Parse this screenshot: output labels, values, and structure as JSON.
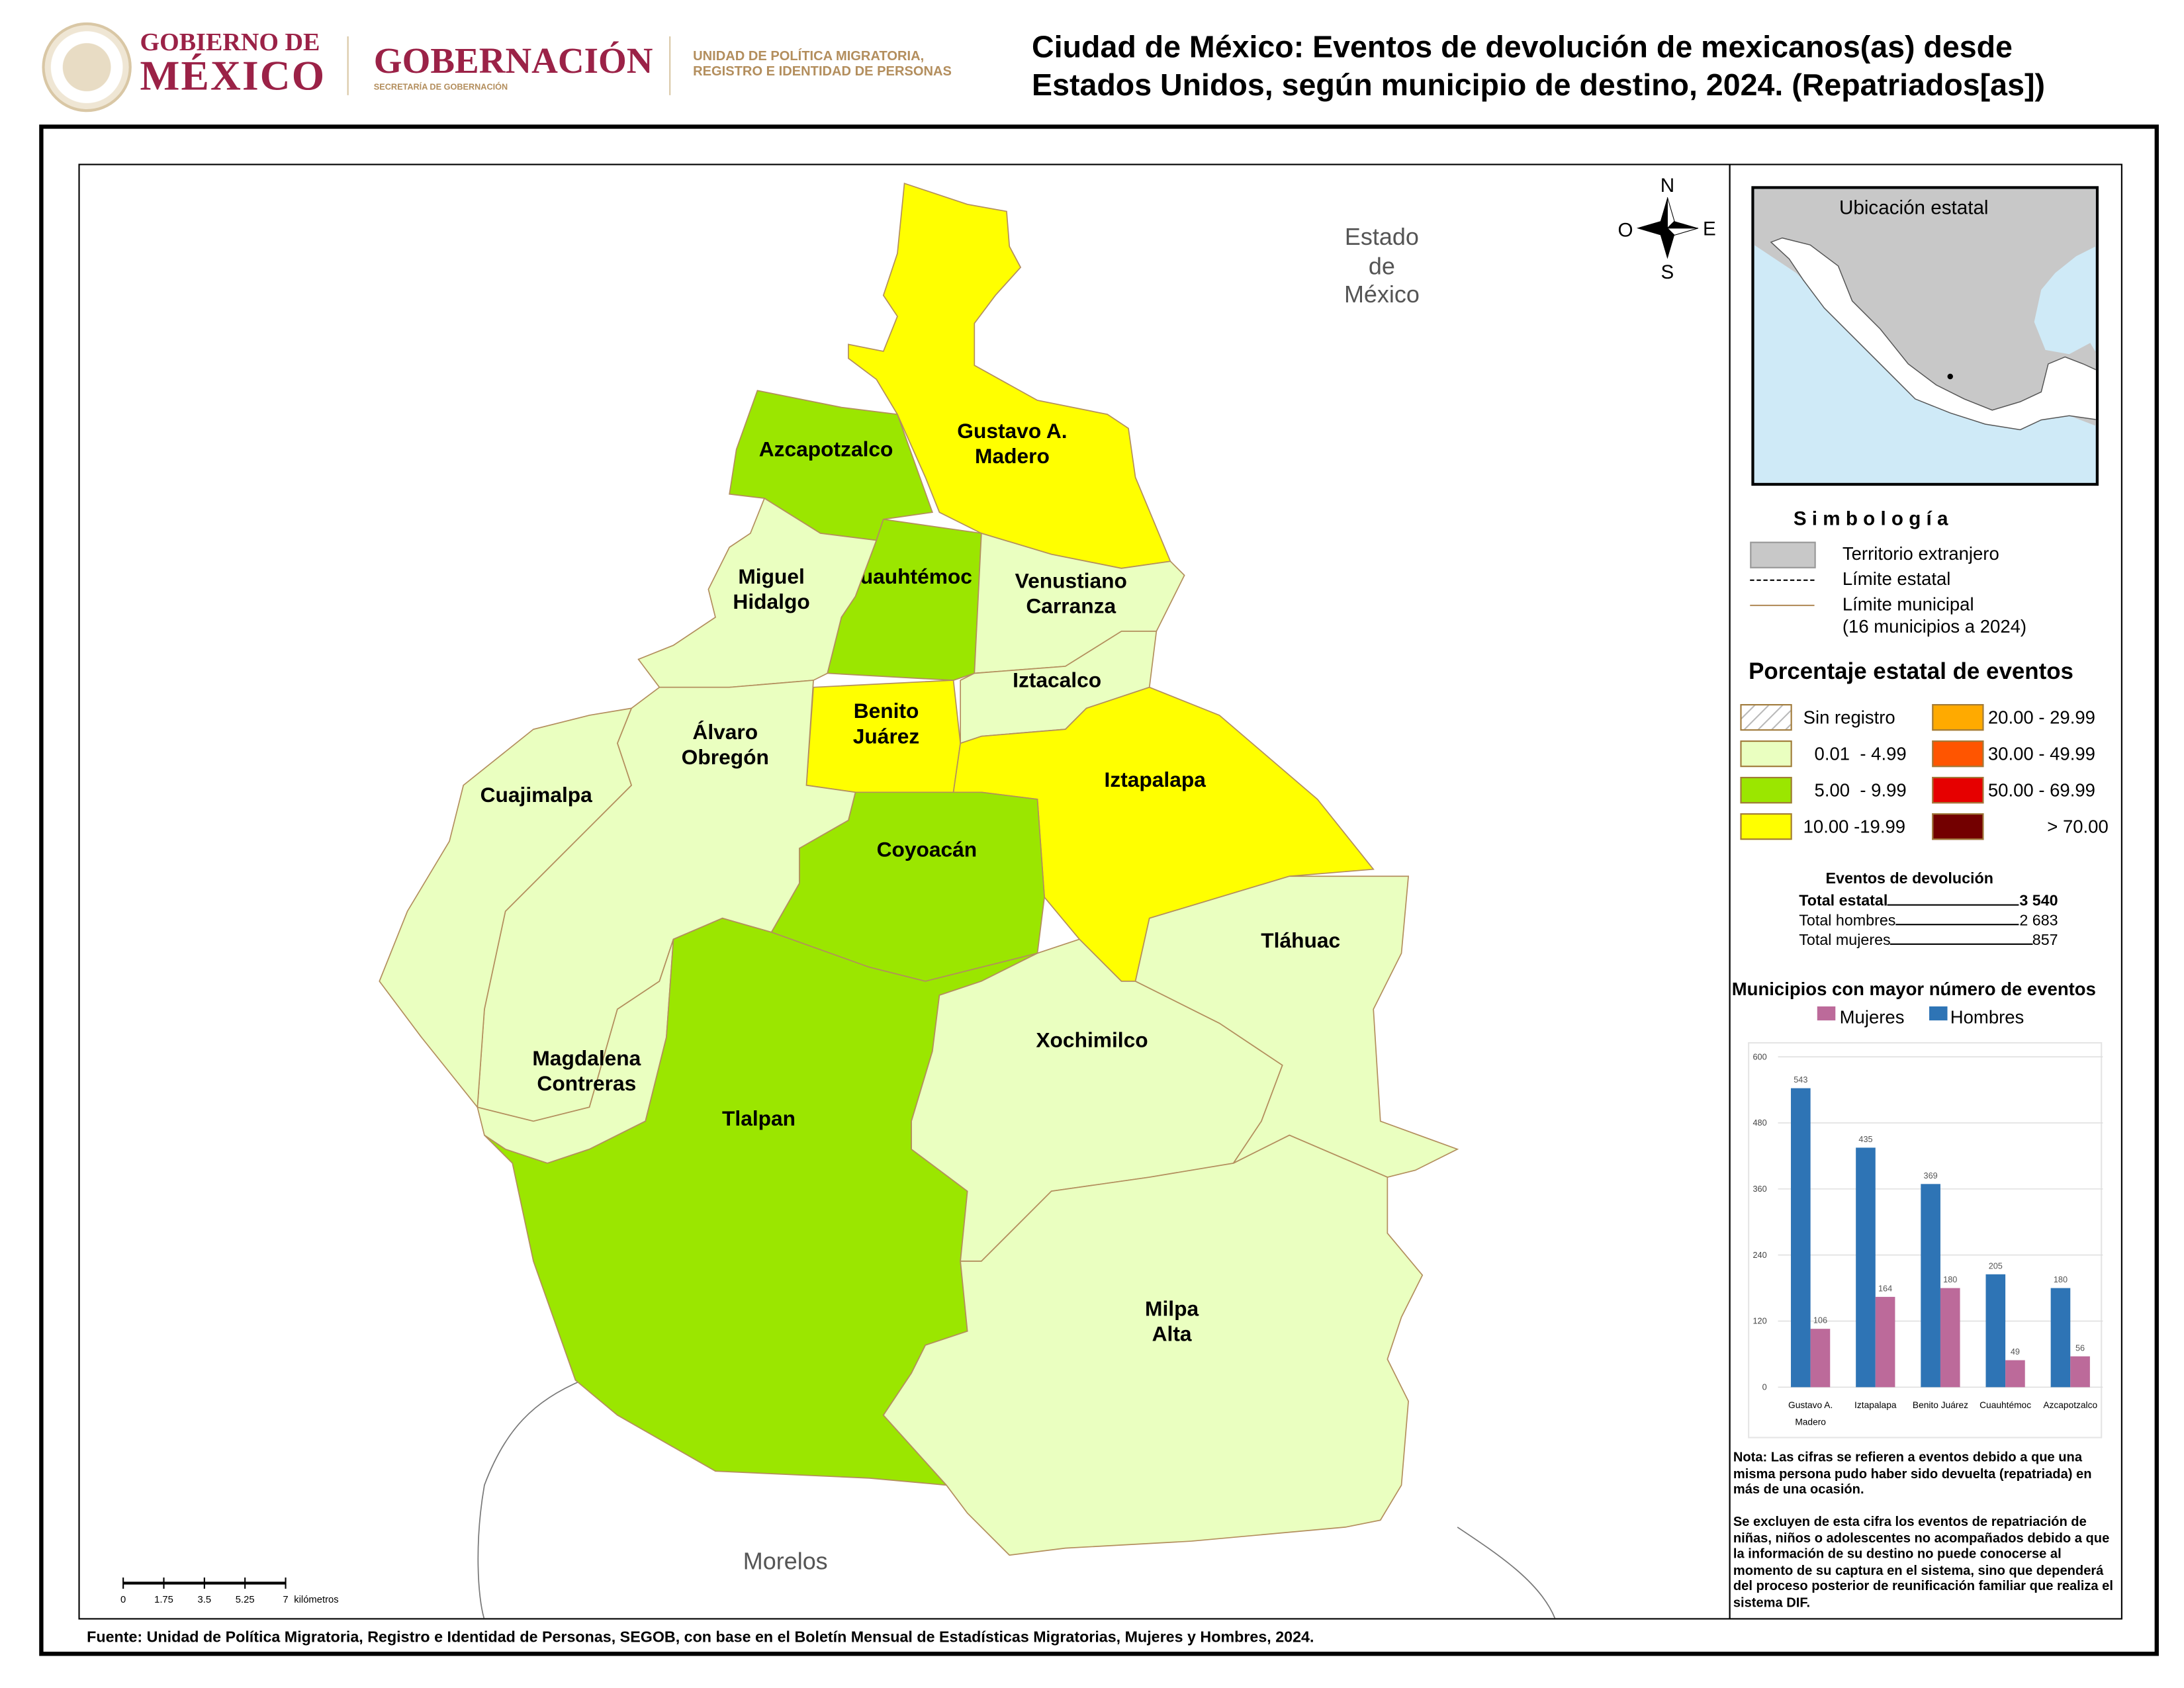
{
  "header": {
    "logo_gob_line1": "GOBIERNO DE",
    "logo_gob_line2": "MÉXICO",
    "logo_seal_text": "ESTADOS UNIDOS MEXICANOS",
    "logo_gobernacion": "GOBERNACIÓN",
    "logo_secretaria": "SECRETARÍA DE GOBERNACIÓN",
    "unit_line1": "UNIDAD DE POLÍTICA MIGRATORIA,",
    "unit_line2": "REGISTRO E IDENTIDAD DE PERSONAS",
    "title_line1": "Ciudad de México: Eventos de devolución de mexicanos(as) desde",
    "title_line2": "Estados Unidos, según municipio de destino, 2024. (Repatriados[as])"
  },
  "colors": {
    "sin_registro": "#ffffff",
    "c0": "#eaffc0",
    "c5": "#9be600",
    "c10": "#ffff00",
    "c20": "#ffaa00",
    "c30": "#ff5500",
    "c50": "#e60000",
    "c70": "#730000",
    "border": "#b38e5d",
    "mujeres": "#bc6a9a",
    "hombres": "#2e74b5"
  },
  "map": {
    "neighbors": {
      "edomex_1": "Estado",
      "edomex_2": "de",
      "edomex_3": "México",
      "morelos": "Morelos"
    },
    "compass": {
      "n": "N",
      "s": "S",
      "e": "E",
      "w": "O"
    },
    "scale": {
      "ticks": [
        "0",
        "1.75",
        "3.5",
        "5.25",
        "7"
      ],
      "unit": "kilómetros"
    },
    "municipios": [
      {
        "name": "Gustavo A. Madero",
        "l1": "Gustavo A.",
        "l2": "Madero",
        "class": "c10"
      },
      {
        "name": "Azcapotzalco",
        "l1": "Azcapotzalco",
        "l2": "",
        "class": "c5"
      },
      {
        "name": "Cuauhtémoc",
        "l1": "Cuauhtémoc",
        "l2": "",
        "class": "c5"
      },
      {
        "name": "Miguel Hidalgo",
        "l1": "Miguel",
        "l2": "Hidalgo",
        "class": "c0"
      },
      {
        "name": "Venustiano Carranza",
        "l1": "Venustiano",
        "l2": "Carranza",
        "class": "c0"
      },
      {
        "name": "Iztacalco",
        "l1": "Iztacalco",
        "l2": "",
        "class": "c0"
      },
      {
        "name": "Benito Juárez",
        "l1": "Benito",
        "l2": "Juárez",
        "class": "c10"
      },
      {
        "name": "Iztapalapa",
        "l1": "Iztapalapa",
        "l2": "",
        "class": "c10"
      },
      {
        "name": "Coyoacán",
        "l1": "Coyoacán",
        "l2": "",
        "class": "c5"
      },
      {
        "name": "Álvaro Obregón",
        "l1": "Álvaro",
        "l2": "Obregón",
        "class": "c0"
      },
      {
        "name": "Cuajimalpa",
        "l1": "Cuajimalpa",
        "l2": "",
        "class": "c0"
      },
      {
        "name": "Magdalena Contreras",
        "l1": "Magdalena",
        "l2": "Contreras",
        "class": "c0"
      },
      {
        "name": "Tlalpan",
        "l1": "Tlalpan",
        "l2": "",
        "class": "c5"
      },
      {
        "name": "Xochimilco",
        "l1": "Xochimilco",
        "l2": "",
        "class": "c0"
      },
      {
        "name": "Tláhuac",
        "l1": "Tláhuac",
        "l2": "",
        "class": "c0"
      },
      {
        "name": "Milpa Alta",
        "l1": "Milpa",
        "l2": "Alta",
        "class": "c0"
      }
    ]
  },
  "panel": {
    "inset_title": "Ubicación estatal",
    "simbologia_title": "S i m b o l o g í a",
    "simb": [
      "Territorio extranjero",
      "Límite estatal",
      "Límite municipal",
      "(16 municipios a 2024)"
    ],
    "legend_title": "Porcentaje estatal de eventos",
    "legend": [
      {
        "label": "Sin registro",
        "class": "sin_registro"
      },
      {
        "label": "0.01  - 4.99",
        "class": "c0"
      },
      {
        "label": "5.00  - 9.99",
        "class": "c5"
      },
      {
        "label": "10.00 -19.99",
        "class": "c10"
      },
      {
        "label": "20.00 - 29.99",
        "class": "c20"
      },
      {
        "label": "30.00 - 49.99",
        "class": "c30"
      },
      {
        "label": "50.00 - 69.99",
        "class": "c50"
      },
      {
        "label": "> 70.00",
        "class": "c70"
      }
    ],
    "totals_title": "Eventos de devolución",
    "totals": [
      {
        "label": "Total estatal",
        "value": "3 540"
      },
      {
        "label": "Total hombres",
        "value": "2 683"
      },
      {
        "label": "Total mujeres",
        "value": "857"
      }
    ],
    "note1": "Nota: Las cifras se refieren a eventos debido a que una misma persona pudo haber sido devuelta (repatriada) en más de una ocasión.",
    "note2": "Se excluyen de esta cifra los eventos de repatriación de niñas, niños o adolescentes no acompañados debido a que la información de su destino no puede conocerse al momento de su captura en el sistema, sino que dependerá del proceso posterior de reunificación familiar que realiza el sistema DIF."
  },
  "chart_data": {
    "type": "bar",
    "title": "Municipios con mayor número de eventos",
    "categories": [
      "Gustavo A. Madero",
      "Iztapalapa",
      "Benito Juárez",
      "Cuauhtémoc",
      "Azcapotzalco"
    ],
    "series": [
      {
        "name": "Hombres",
        "values": [
          543,
          435,
          369,
          205,
          180
        ]
      },
      {
        "name": "Mujeres",
        "values": [
          106,
          164,
          180,
          49,
          56
        ]
      }
    ],
    "legend_order": [
      "Mujeres",
      "Hombres"
    ],
    "yticks": [
      "0",
      "120",
      "240",
      "360",
      "480",
      "600"
    ],
    "ylim": [
      0,
      600
    ],
    "grid": true,
    "legend": "top"
  },
  "footer": {
    "source": "Fuente: Unidad de Política Migratoria, Registro e Identidad de Personas, SEGOB, con base en el Boletín Mensual de Estadísticas Migratorias, Mujeres y Hombres, 2024."
  }
}
